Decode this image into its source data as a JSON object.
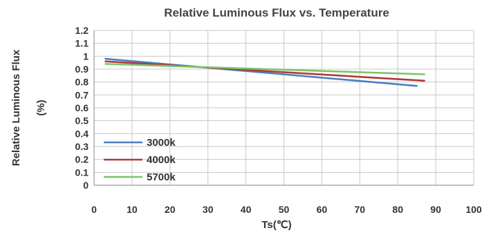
{
  "chart_data": {
    "type": "line",
    "title": "Relative Luminous Flux vs. Temperature",
    "xlabel": "Ts(℃)",
    "ylabel_line1": "Relative Luminous Flux",
    "ylabel_line2": "(%)",
    "xlim": [
      0,
      100
    ],
    "ylim": [
      0,
      1.2
    ],
    "xticks": [
      "0",
      "10",
      "20",
      "30",
      "40",
      "50",
      "60",
      "70",
      "80",
      "90",
      "100"
    ],
    "yticks": [
      "0",
      "0.1",
      "0.2",
      "0.3",
      "0.4",
      "0.5",
      "0.6",
      "0.7",
      "0.8",
      "0.9",
      "1",
      "1.1",
      "1.2"
    ],
    "grid": true,
    "legend_position": "bottom-left",
    "series": [
      {
        "name": "3000k",
        "color": "#4a7fc1",
        "x": [
          3,
          85
        ],
        "y": [
          0.98,
          0.77
        ]
      },
      {
        "name": "4000k",
        "color": "#b03a3a",
        "x": [
          3,
          87
        ],
        "y": [
          0.96,
          0.81
        ]
      },
      {
        "name": "5700k",
        "color": "#7bc46a",
        "x": [
          3,
          87
        ],
        "y": [
          0.94,
          0.86
        ]
      }
    ]
  }
}
